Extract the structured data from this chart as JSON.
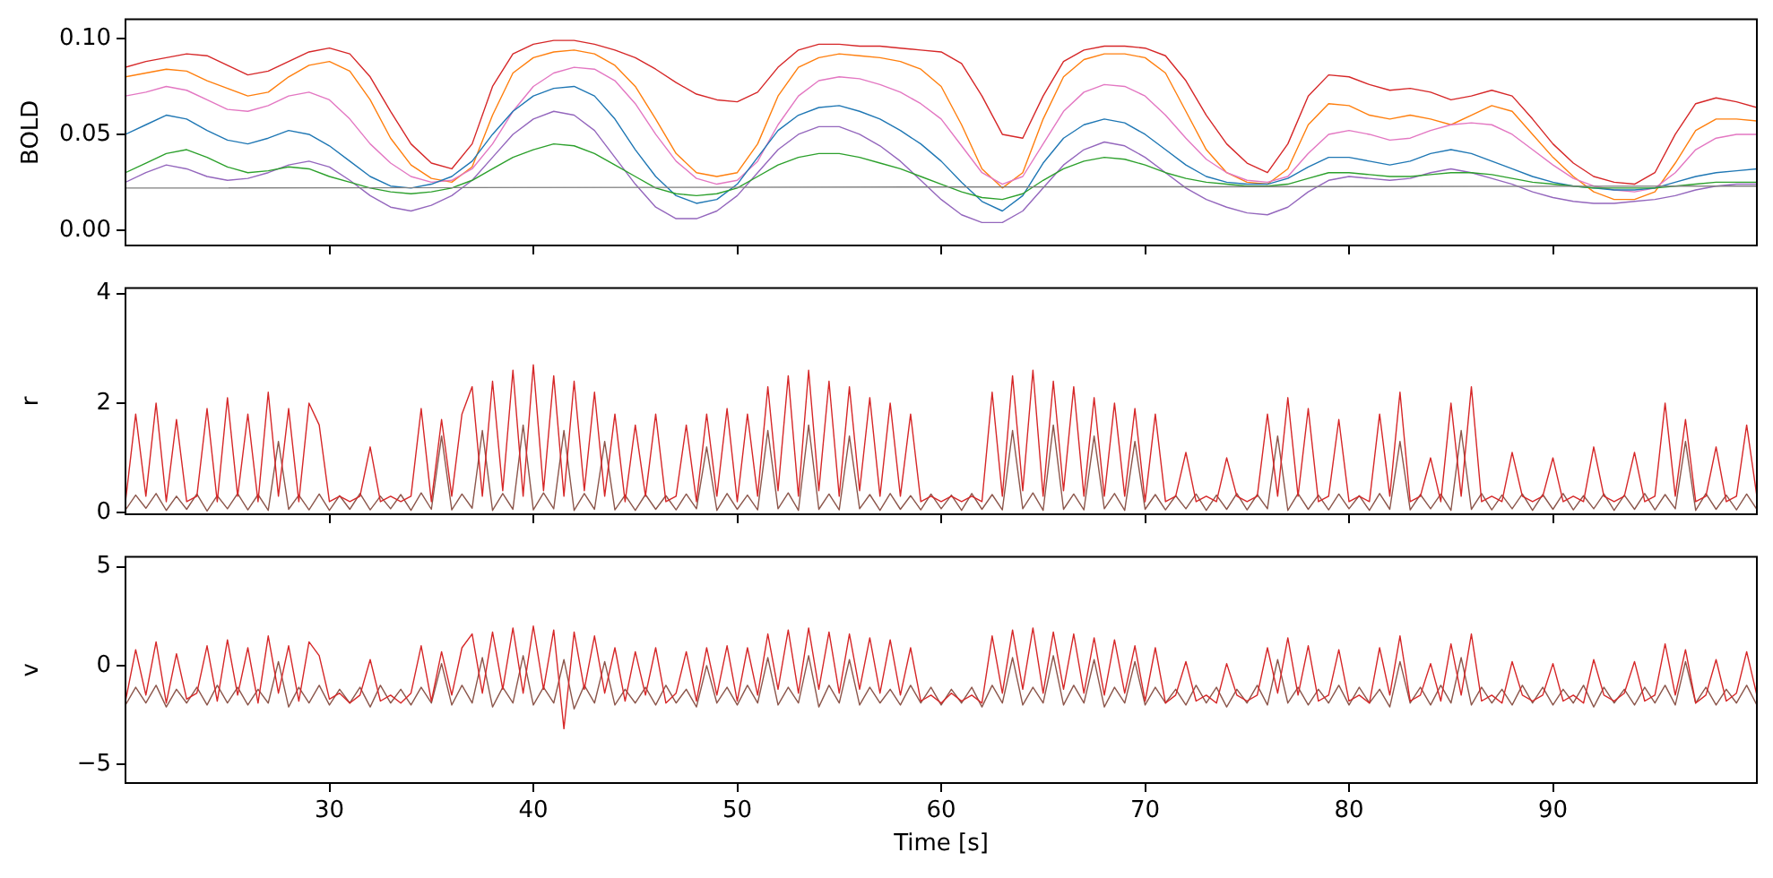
{
  "chart_data": [
    {
      "type": "line",
      "ylabel": "BOLD",
      "xlim": [
        20,
        100
      ],
      "xticks": [
        30,
        40,
        50,
        60,
        70,
        80,
        90
      ],
      "ylim": [
        -0.008,
        0.11
      ],
      "yticks": [
        {
          "value": 0,
          "label": "0.00"
        },
        {
          "value": 0.05,
          "label": "0.05"
        },
        {
          "value": 0.1,
          "label": "0.10"
        }
      ],
      "tick_labels": "y",
      "x": [
        20,
        21,
        22,
        23,
        24,
        25,
        26,
        27,
        28,
        29,
        30,
        31,
        32,
        33,
        34,
        35,
        36,
        37,
        38,
        39,
        40,
        41,
        42,
        43,
        44,
        45,
        46,
        47,
        48,
        49,
        50,
        51,
        52,
        53,
        54,
        55,
        56,
        57,
        58,
        59,
        60,
        61,
        62,
        63,
        64,
        65,
        66,
        67,
        68,
        69,
        70,
        71,
        72,
        73,
        74,
        75,
        76,
        77,
        78,
        79,
        80,
        81,
        82,
        83,
        84,
        85,
        86,
        87,
        88,
        89,
        90,
        91,
        92,
        93,
        94,
        95,
        96,
        97,
        98,
        99,
        100
      ],
      "series": [
        {
          "color": "#7f7f7f",
          "x": [
            20,
            100
          ],
          "values": [
            0.022,
            0.023
          ]
        },
        {
          "color": "#2ca02c",
          "values": [
            0.03,
            0.035,
            0.04,
            0.042,
            0.038,
            0.033,
            0.03,
            0.031,
            0.033,
            0.032,
            0.028,
            0.025,
            0.022,
            0.02,
            0.019,
            0.02,
            0.022,
            0.026,
            0.032,
            0.038,
            0.042,
            0.045,
            0.044,
            0.04,
            0.034,
            0.028,
            0.022,
            0.019,
            0.018,
            0.019,
            0.022,
            0.028,
            0.034,
            0.038,
            0.04,
            0.04,
            0.038,
            0.035,
            0.032,
            0.028,
            0.024,
            0.02,
            0.017,
            0.016,
            0.019,
            0.026,
            0.032,
            0.036,
            0.038,
            0.037,
            0.034,
            0.03,
            0.027,
            0.025,
            0.024,
            0.023,
            0.023,
            0.024,
            0.027,
            0.03,
            0.03,
            0.029,
            0.028,
            0.028,
            0.029,
            0.03,
            0.03,
            0.029,
            0.027,
            0.025,
            0.024,
            0.023,
            0.022,
            0.022,
            0.022,
            0.022,
            0.023,
            0.024,
            0.025,
            0.025,
            0.025
          ]
        },
        {
          "color": "#9467bd",
          "values": [
            0.025,
            0.03,
            0.034,
            0.032,
            0.028,
            0.026,
            0.027,
            0.03,
            0.034,
            0.036,
            0.033,
            0.026,
            0.018,
            0.012,
            0.01,
            0.013,
            0.018,
            0.026,
            0.038,
            0.05,
            0.058,
            0.062,
            0.06,
            0.052,
            0.038,
            0.024,
            0.012,
            0.006,
            0.006,
            0.01,
            0.018,
            0.03,
            0.042,
            0.05,
            0.054,
            0.054,
            0.05,
            0.044,
            0.036,
            0.026,
            0.016,
            0.008,
            0.004,
            0.004,
            0.01,
            0.022,
            0.034,
            0.042,
            0.046,
            0.044,
            0.038,
            0.03,
            0.022,
            0.016,
            0.012,
            0.009,
            0.008,
            0.012,
            0.02,
            0.026,
            0.028,
            0.027,
            0.026,
            0.027,
            0.03,
            0.032,
            0.03,
            0.027,
            0.024,
            0.02,
            0.017,
            0.015,
            0.014,
            0.014,
            0.015,
            0.016,
            0.018,
            0.021,
            0.023,
            0.024,
            0.024
          ]
        },
        {
          "color": "#1f77b4",
          "values": [
            0.05,
            0.055,
            0.06,
            0.058,
            0.052,
            0.047,
            0.045,
            0.048,
            0.052,
            0.05,
            0.044,
            0.036,
            0.028,
            0.023,
            0.022,
            0.024,
            0.028,
            0.036,
            0.05,
            0.062,
            0.07,
            0.074,
            0.075,
            0.07,
            0.058,
            0.042,
            0.028,
            0.018,
            0.014,
            0.016,
            0.024,
            0.038,
            0.052,
            0.06,
            0.064,
            0.065,
            0.062,
            0.058,
            0.052,
            0.045,
            0.036,
            0.025,
            0.015,
            0.01,
            0.018,
            0.035,
            0.048,
            0.055,
            0.058,
            0.056,
            0.05,
            0.042,
            0.034,
            0.028,
            0.025,
            0.024,
            0.024,
            0.027,
            0.033,
            0.038,
            0.038,
            0.036,
            0.034,
            0.036,
            0.04,
            0.042,
            0.04,
            0.036,
            0.032,
            0.028,
            0.025,
            0.023,
            0.022,
            0.021,
            0.021,
            0.022,
            0.025,
            0.028,
            0.03,
            0.031,
            0.032
          ]
        },
        {
          "color": "#e377c2",
          "values": [
            0.07,
            0.072,
            0.075,
            0.073,
            0.068,
            0.063,
            0.062,
            0.065,
            0.07,
            0.072,
            0.068,
            0.058,
            0.045,
            0.035,
            0.028,
            0.025,
            0.026,
            0.032,
            0.045,
            0.062,
            0.075,
            0.082,
            0.085,
            0.084,
            0.078,
            0.066,
            0.05,
            0.036,
            0.027,
            0.024,
            0.026,
            0.036,
            0.055,
            0.07,
            0.078,
            0.08,
            0.079,
            0.076,
            0.072,
            0.066,
            0.058,
            0.044,
            0.03,
            0.024,
            0.028,
            0.045,
            0.062,
            0.072,
            0.076,
            0.075,
            0.07,
            0.06,
            0.048,
            0.037,
            0.03,
            0.026,
            0.025,
            0.028,
            0.04,
            0.05,
            0.052,
            0.05,
            0.047,
            0.048,
            0.052,
            0.055,
            0.056,
            0.055,
            0.05,
            0.042,
            0.034,
            0.027,
            0.023,
            0.021,
            0.02,
            0.022,
            0.03,
            0.042,
            0.048,
            0.05,
            0.05
          ]
        },
        {
          "color": "#ff7f0e",
          "values": [
            0.08,
            0.082,
            0.084,
            0.083,
            0.078,
            0.074,
            0.07,
            0.072,
            0.08,
            0.086,
            0.088,
            0.083,
            0.068,
            0.048,
            0.034,
            0.027,
            0.025,
            0.033,
            0.06,
            0.082,
            0.09,
            0.093,
            0.094,
            0.092,
            0.086,
            0.075,
            0.058,
            0.04,
            0.03,
            0.028,
            0.03,
            0.045,
            0.07,
            0.085,
            0.09,
            0.092,
            0.091,
            0.09,
            0.088,
            0.084,
            0.075,
            0.055,
            0.032,
            0.022,
            0.03,
            0.058,
            0.08,
            0.089,
            0.092,
            0.092,
            0.09,
            0.082,
            0.062,
            0.042,
            0.03,
            0.025,
            0.024,
            0.032,
            0.055,
            0.066,
            0.065,
            0.06,
            0.058,
            0.06,
            0.058,
            0.055,
            0.06,
            0.065,
            0.062,
            0.05,
            0.038,
            0.028,
            0.02,
            0.016,
            0.016,
            0.02,
            0.035,
            0.052,
            0.058,
            0.058,
            0.057
          ]
        },
        {
          "color": "#d62728",
          "values": [
            0.085,
            0.088,
            0.09,
            0.092,
            0.091,
            0.086,
            0.081,
            0.083,
            0.088,
            0.093,
            0.095,
            0.092,
            0.08,
            0.062,
            0.045,
            0.035,
            0.032,
            0.045,
            0.075,
            0.092,
            0.097,
            0.099,
            0.099,
            0.097,
            0.094,
            0.09,
            0.084,
            0.077,
            0.071,
            0.068,
            0.067,
            0.072,
            0.085,
            0.094,
            0.097,
            0.097,
            0.096,
            0.096,
            0.095,
            0.094,
            0.093,
            0.087,
            0.07,
            0.05,
            0.048,
            0.07,
            0.088,
            0.094,
            0.096,
            0.096,
            0.095,
            0.091,
            0.078,
            0.06,
            0.045,
            0.035,
            0.03,
            0.045,
            0.07,
            0.081,
            0.08,
            0.076,
            0.073,
            0.074,
            0.072,
            0.068,
            0.07,
            0.073,
            0.07,
            0.058,
            0.045,
            0.035,
            0.028,
            0.025,
            0.024,
            0.03,
            0.05,
            0.066,
            0.069,
            0.067,
            0.064
          ]
        }
      ]
    },
    {
      "type": "line",
      "ylabel": "r",
      "xlim": [
        20,
        100
      ],
      "xticks": [
        30,
        40,
        50,
        60,
        70,
        80,
        90
      ],
      "ylim": [
        -0.03,
        4.1
      ],
      "yticks": [
        0,
        2,
        4
      ],
      "tick_labels": "y",
      "x": [
        20,
        20.5,
        21,
        21.5,
        22,
        22.5,
        23,
        23.5,
        24,
        24.5,
        25,
        25.5,
        26,
        26.5,
        27,
        27.5,
        28,
        28.5,
        29,
        29.5,
        30,
        30.5,
        31,
        31.5,
        32,
        32.5,
        33,
        33.5,
        34,
        34.5,
        35,
        35.5,
        36,
        36.5,
        37,
        37.5,
        38,
        38.5,
        39,
        39.5,
        40,
        40.5,
        41,
        41.5,
        42,
        42.5,
        43,
        43.5,
        44,
        44.5,
        45,
        45.5,
        46,
        46.5,
        47,
        47.5,
        48,
        48.5,
        49,
        49.5,
        50,
        50.5,
        51,
        51.5,
        52,
        52.5,
        53,
        53.5,
        54,
        54.5,
        55,
        55.5,
        56,
        56.5,
        57,
        57.5,
        58,
        58.5,
        59,
        59.5,
        60,
        60.5,
        61,
        61.5,
        62,
        62.5,
        63,
        63.5,
        64,
        64.5,
        65,
        65.5,
        66,
        66.5,
        67,
        67.5,
        68,
        68.5,
        69,
        69.5,
        70,
        70.5,
        71,
        71.5,
        72,
        72.5,
        73,
        73.5,
        74,
        74.5,
        75,
        75.5,
        76,
        76.5,
        77,
        77.5,
        78,
        78.5,
        79,
        79.5,
        80,
        80.5,
        81,
        81.5,
        82,
        82.5,
        83,
        83.5,
        84,
        84.5,
        85,
        85.5,
        86,
        86.5,
        87,
        87.5,
        88,
        88.5,
        89,
        89.5,
        90,
        90.5,
        91,
        91.5,
        92,
        92.5,
        93,
        93.5,
        94,
        94.5,
        95,
        95.5,
        96,
        96.5,
        97,
        97.5,
        98,
        98.5,
        99,
        99.5,
        100
      ],
      "series": [
        {
          "color": "#d62728",
          "values": [
            0.2,
            1.8,
            0.3,
            2.0,
            0.2,
            1.7,
            0.2,
            0.3,
            1.9,
            0.2,
            2.1,
            0.3,
            1.8,
            0.2,
            2.2,
            0.3,
            1.9,
            0.2,
            2.0,
            1.6,
            0.2,
            0.3,
            0.2,
            0.3,
            1.2,
            0.2,
            0.3,
            0.2,
            0.3,
            1.9,
            0.2,
            1.7,
            0.3,
            1.8,
            2.3,
            0.3,
            2.4,
            0.4,
            2.6,
            0.3,
            2.7,
            0.4,
            2.5,
            0.3,
            2.4,
            0.4,
            2.2,
            0.3,
            1.8,
            0.2,
            1.6,
            0.3,
            1.8,
            0.2,
            0.3,
            1.6,
            0.2,
            1.8,
            0.3,
            1.9,
            0.2,
            1.8,
            0.3,
            2.3,
            0.4,
            2.5,
            0.3,
            2.6,
            0.4,
            2.4,
            0.3,
            2.3,
            0.4,
            2.1,
            0.3,
            2.0,
            0.3,
            1.8,
            0.2,
            0.3,
            0.2,
            0.3,
            0.2,
            0.3,
            0.2,
            2.2,
            0.3,
            2.5,
            0.4,
            2.6,
            0.3,
            2.4,
            0.4,
            2.3,
            0.3,
            2.1,
            0.3,
            2.0,
            0.3,
            1.9,
            0.2,
            1.8,
            0.2,
            0.3,
            1.1,
            0.2,
            0.3,
            0.2,
            1.0,
            0.3,
            0.2,
            0.3,
            1.8,
            0.3,
            2.1,
            0.3,
            1.9,
            0.2,
            0.3,
            1.7,
            0.2,
            0.3,
            0.2,
            1.8,
            0.3,
            2.2,
            0.2,
            0.3,
            1.0,
            0.2,
            2.0,
            0.3,
            2.3,
            0.2,
            0.3,
            0.2,
            1.1,
            0.3,
            0.2,
            0.3,
            1.0,
            0.2,
            0.3,
            0.2,
            1.2,
            0.3,
            0.2,
            0.3,
            1.1,
            0.2,
            0.3,
            2.0,
            0.3,
            1.7,
            0.2,
            0.3,
            1.2,
            0.2,
            0.3,
            1.6,
            0.3
          ]
        },
        {
          "color": "#8c564b",
          "values": [
            0.05,
            0.32,
            0.08,
            0.35,
            0.04,
            0.3,
            0.06,
            0.34,
            0.03,
            0.31,
            0.07,
            0.35,
            0.05,
            0.33,
            0.04,
            1.3,
            0.06,
            0.32,
            0.05,
            0.34,
            0.04,
            0.31,
            0.06,
            0.35,
            0.05,
            0.3,
            0.07,
            0.33,
            0.04,
            0.36,
            0.06,
            1.4,
            0.05,
            0.34,
            0.08,
            1.5,
            0.04,
            0.35,
            0.06,
            1.6,
            0.05,
            0.36,
            0.07,
            1.5,
            0.04,
            0.35,
            0.06,
            1.3,
            0.05,
            0.32,
            0.04,
            0.33,
            0.06,
            0.31,
            0.05,
            0.34,
            0.07,
            1.2,
            0.04,
            0.35,
            0.06,
            0.32,
            0.05,
            1.5,
            0.07,
            0.36,
            0.04,
            1.6,
            0.06,
            0.34,
            0.05,
            1.4,
            0.07,
            0.33,
            0.04,
            0.35,
            0.06,
            0.31,
            0.05,
            0.34,
            0.07,
            0.32,
            0.04,
            0.35,
            0.06,
            0.33,
            0.05,
            1.5,
            0.07,
            0.36,
            0.04,
            1.6,
            0.06,
            0.34,
            0.05,
            1.4,
            0.07,
            0.35,
            0.04,
            1.3,
            0.06,
            0.33,
            0.05,
            0.31,
            0.07,
            0.34,
            0.04,
            0.32,
            0.06,
            0.35,
            0.05,
            0.33,
            0.07,
            1.4,
            0.04,
            0.35,
            0.06,
            0.32,
            0.05,
            0.34,
            0.07,
            0.31,
            0.04,
            0.35,
            0.06,
            1.3,
            0.05,
            0.33,
            0.07,
            0.34,
            0.04,
            1.5,
            0.06,
            0.35,
            0.05,
            0.32,
            0.07,
            0.34,
            0.04,
            0.33,
            0.06,
            0.35,
            0.05,
            0.31,
            0.07,
            0.34,
            0.04,
            0.32,
            0.06,
            0.35,
            0.05,
            0.33,
            0.07,
            1.3,
            0.04,
            0.35,
            0.06,
            0.32,
            0.05,
            0.34,
            0.06
          ]
        }
      ]
    },
    {
      "type": "line",
      "ylabel": "v",
      "xlabel": "Time [s]",
      "xlim": [
        20,
        100
      ],
      "xticks": [
        30,
        40,
        50,
        60,
        70,
        80,
        90
      ],
      "ylim": [
        -5.95,
        5.5
      ],
      "yticks": [
        {
          "value": -5,
          "label": "−5"
        },
        0,
        5
      ],
      "x": [
        20,
        20.5,
        21,
        21.5,
        22,
        22.5,
        23,
        23.5,
        24,
        24.5,
        25,
        25.5,
        26,
        26.5,
        27,
        27.5,
        28,
        28.5,
        29,
        29.5,
        30,
        30.5,
        31,
        31.5,
        32,
        32.5,
        33,
        33.5,
        34,
        34.5,
        35,
        35.5,
        36,
        36.5,
        37,
        37.5,
        38,
        38.5,
        39,
        39.5,
        40,
        40.5,
        41,
        41.5,
        42,
        42.5,
        43,
        43.5,
        44,
        44.5,
        45,
        45.5,
        46,
        46.5,
        47,
        47.5,
        48,
        48.5,
        49,
        49.5,
        50,
        50.5,
        51,
        51.5,
        52,
        52.5,
        53,
        53.5,
        54,
        54.5,
        55,
        55.5,
        56,
        56.5,
        57,
        57.5,
        58,
        58.5,
        59,
        59.5,
        60,
        60.5,
        61,
        61.5,
        62,
        62.5,
        63,
        63.5,
        64,
        64.5,
        65,
        65.5,
        66,
        66.5,
        67,
        67.5,
        68,
        68.5,
        69,
        69.5,
        70,
        70.5,
        71,
        71.5,
        72,
        72.5,
        73,
        73.5,
        74,
        74.5,
        75,
        75.5,
        76,
        76.5,
        77,
        77.5,
        78,
        78.5,
        79,
        79.5,
        80,
        80.5,
        81,
        81.5,
        82,
        82.5,
        83,
        83.5,
        84,
        84.5,
        85,
        85.5,
        86,
        86.5,
        87,
        87.5,
        88,
        88.5,
        89,
        89.5,
        90,
        90.5,
        91,
        91.5,
        92,
        92.5,
        93,
        93.5,
        94,
        94.5,
        95,
        95.5,
        96,
        96.5,
        97,
        97.5,
        98,
        98.5,
        99,
        99.5,
        100
      ],
      "series": [
        {
          "color": "#d62728",
          "values": [
            -1.8,
            0.8,
            -1.5,
            1.2,
            -1.9,
            0.6,
            -1.7,
            -1.4,
            1.0,
            -1.8,
            1.3,
            -1.5,
            0.9,
            -1.9,
            1.5,
            -1.4,
            1.0,
            -1.8,
            1.2,
            0.5,
            -1.7,
            -1.4,
            -1.9,
            -1.5,
            0.3,
            -1.8,
            -1.5,
            -1.9,
            -1.4,
            1.0,
            -1.8,
            0.7,
            -1.5,
            0.9,
            1.6,
            -1.4,
            1.7,
            -1.2,
            1.9,
            -1.4,
            2.0,
            -1.2,
            1.8,
            -3.2,
            1.7,
            -1.2,
            1.5,
            -1.4,
            0.9,
            -1.8,
            0.7,
            -1.5,
            0.9,
            -1.9,
            -1.4,
            0.7,
            -1.8,
            0.9,
            -1.5,
            1.0,
            -1.8,
            0.9,
            -1.5,
            1.6,
            -1.2,
            1.8,
            -1.4,
            1.9,
            -1.2,
            1.7,
            -1.4,
            1.6,
            -1.2,
            1.4,
            -1.4,
            1.3,
            -1.5,
            0.9,
            -1.8,
            -1.5,
            -1.9,
            -1.4,
            -1.8,
            -1.5,
            -1.9,
            1.5,
            -1.4,
            1.8,
            -1.2,
            1.9,
            -1.4,
            1.7,
            -1.2,
            1.6,
            -1.4,
            1.4,
            -1.5,
            1.3,
            -1.4,
            1.0,
            -1.8,
            0.9,
            -1.9,
            -1.5,
            0.2,
            -1.8,
            -1.5,
            -1.9,
            0.1,
            -1.5,
            -1.8,
            -1.5,
            0.9,
            -1.4,
            1.4,
            -1.5,
            1.0,
            -1.8,
            -1.5,
            0.8,
            -1.8,
            -1.5,
            -1.9,
            0.9,
            -1.5,
            1.5,
            -1.8,
            -1.5,
            0.1,
            -1.8,
            1.1,
            -1.5,
            1.6,
            -1.8,
            -1.5,
            -1.9,
            0.2,
            -1.5,
            -1.8,
            -1.5,
            0.1,
            -1.8,
            -1.5,
            -1.9,
            0.3,
            -1.5,
            -1.8,
            -1.4,
            0.2,
            -1.8,
            -1.5,
            1.1,
            -1.5,
            0.8,
            -1.9,
            -1.5,
            0.3,
            -1.8,
            -1.4,
            0.7,
            -1.5
          ]
        },
        {
          "color": "#8c564b",
          "values": [
            -2.0,
            -1.1,
            -1.9,
            -1.0,
            -2.1,
            -1.2,
            -1.9,
            -1.1,
            -2.0,
            -1.0,
            -1.9,
            -1.1,
            -2.0,
            -1.2,
            -1.9,
            0.2,
            -2.1,
            -1.1,
            -1.9,
            -1.0,
            -2.0,
            -1.2,
            -1.9,
            -1.1,
            -2.1,
            -1.0,
            -1.9,
            -1.2,
            -2.0,
            -1.1,
            -1.9,
            0.1,
            -2.0,
            -1.0,
            -1.9,
            0.4,
            -2.1,
            -1.1,
            -1.9,
            0.5,
            -2.0,
            -1.1,
            -1.9,
            0.3,
            -2.2,
            -1.0,
            -1.9,
            0.2,
            -2.0,
            -1.2,
            -1.9,
            -1.1,
            -2.0,
            -1.0,
            -1.9,
            -1.2,
            -2.1,
            0.0,
            -1.9,
            -1.1,
            -2.0,
            -1.0,
            -1.9,
            0.4,
            -2.0,
            -1.1,
            -1.9,
            0.5,
            -2.1,
            -1.0,
            -1.9,
            0.3,
            -2.0,
            -1.1,
            -1.9,
            -1.2,
            -2.0,
            -1.0,
            -1.9,
            -1.1,
            -2.0,
            -1.2,
            -1.9,
            -1.1,
            -2.1,
            -1.0,
            -1.9,
            0.4,
            -2.0,
            -1.1,
            -1.9,
            0.5,
            -2.0,
            -1.0,
            -1.9,
            0.3,
            -2.1,
            -1.1,
            -1.9,
            0.2,
            -2.0,
            -1.1,
            -1.9,
            -1.2,
            -2.0,
            -1.0,
            -1.9,
            -1.1,
            -2.1,
            -1.2,
            -1.9,
            -1.0,
            -2.0,
            0.3,
            -1.9,
            -1.1,
            -2.0,
            -1.2,
            -1.9,
            -1.0,
            -2.0,
            -1.1,
            -1.9,
            -1.2,
            -2.1,
            0.2,
            -1.9,
            -1.1,
            -2.0,
            -1.0,
            -1.9,
            0.4,
            -2.0,
            -1.1,
            -1.9,
            -1.2,
            -2.0,
            -1.0,
            -1.9,
            -1.1,
            -2.0,
            -1.2,
            -1.9,
            -1.0,
            -2.1,
            -1.1,
            -1.9,
            -1.2,
            -2.0,
            -1.1,
            -1.9,
            -1.0,
            -2.0,
            0.2,
            -1.9,
            -1.1,
            -2.0,
            -1.2,
            -1.9,
            -1.0,
            -2.0
          ]
        }
      ]
    }
  ]
}
